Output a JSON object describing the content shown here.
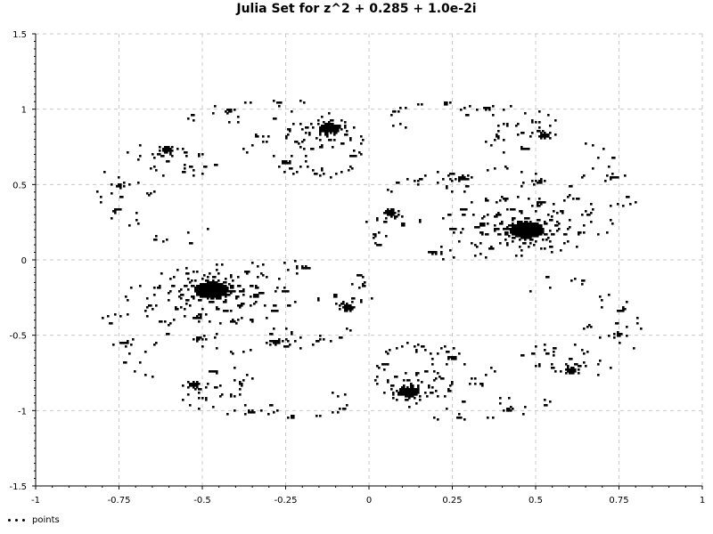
{
  "chart_data": {
    "type": "scatter",
    "title": "Julia Set for z^2 + 0.285 + 1.0e-2i",
    "xlabel": "",
    "ylabel": "",
    "xlim": [
      -1,
      1
    ],
    "ylim": [
      -1.5,
      1.5
    ],
    "x_ticks": [
      "-1",
      "-0.75",
      "-0.5",
      "-0.25",
      "0",
      "0.25",
      "0.5",
      "0.75",
      "1"
    ],
    "y_ticks": [
      "1.5",
      "1",
      "0.5",
      "0",
      "-0.5",
      "-1",
      "-1.5"
    ],
    "grid": true,
    "legend_position": "bottom-left",
    "series": [
      {
        "name": "points",
        "color": "#000000",
        "marker": "dot",
        "generator": {
          "kind": "julia-filled-set",
          "c_re": 0.285,
          "c_im": 0.01,
          "escape_radius": 2,
          "max_iterations": 100
        }
      }
    ]
  }
}
